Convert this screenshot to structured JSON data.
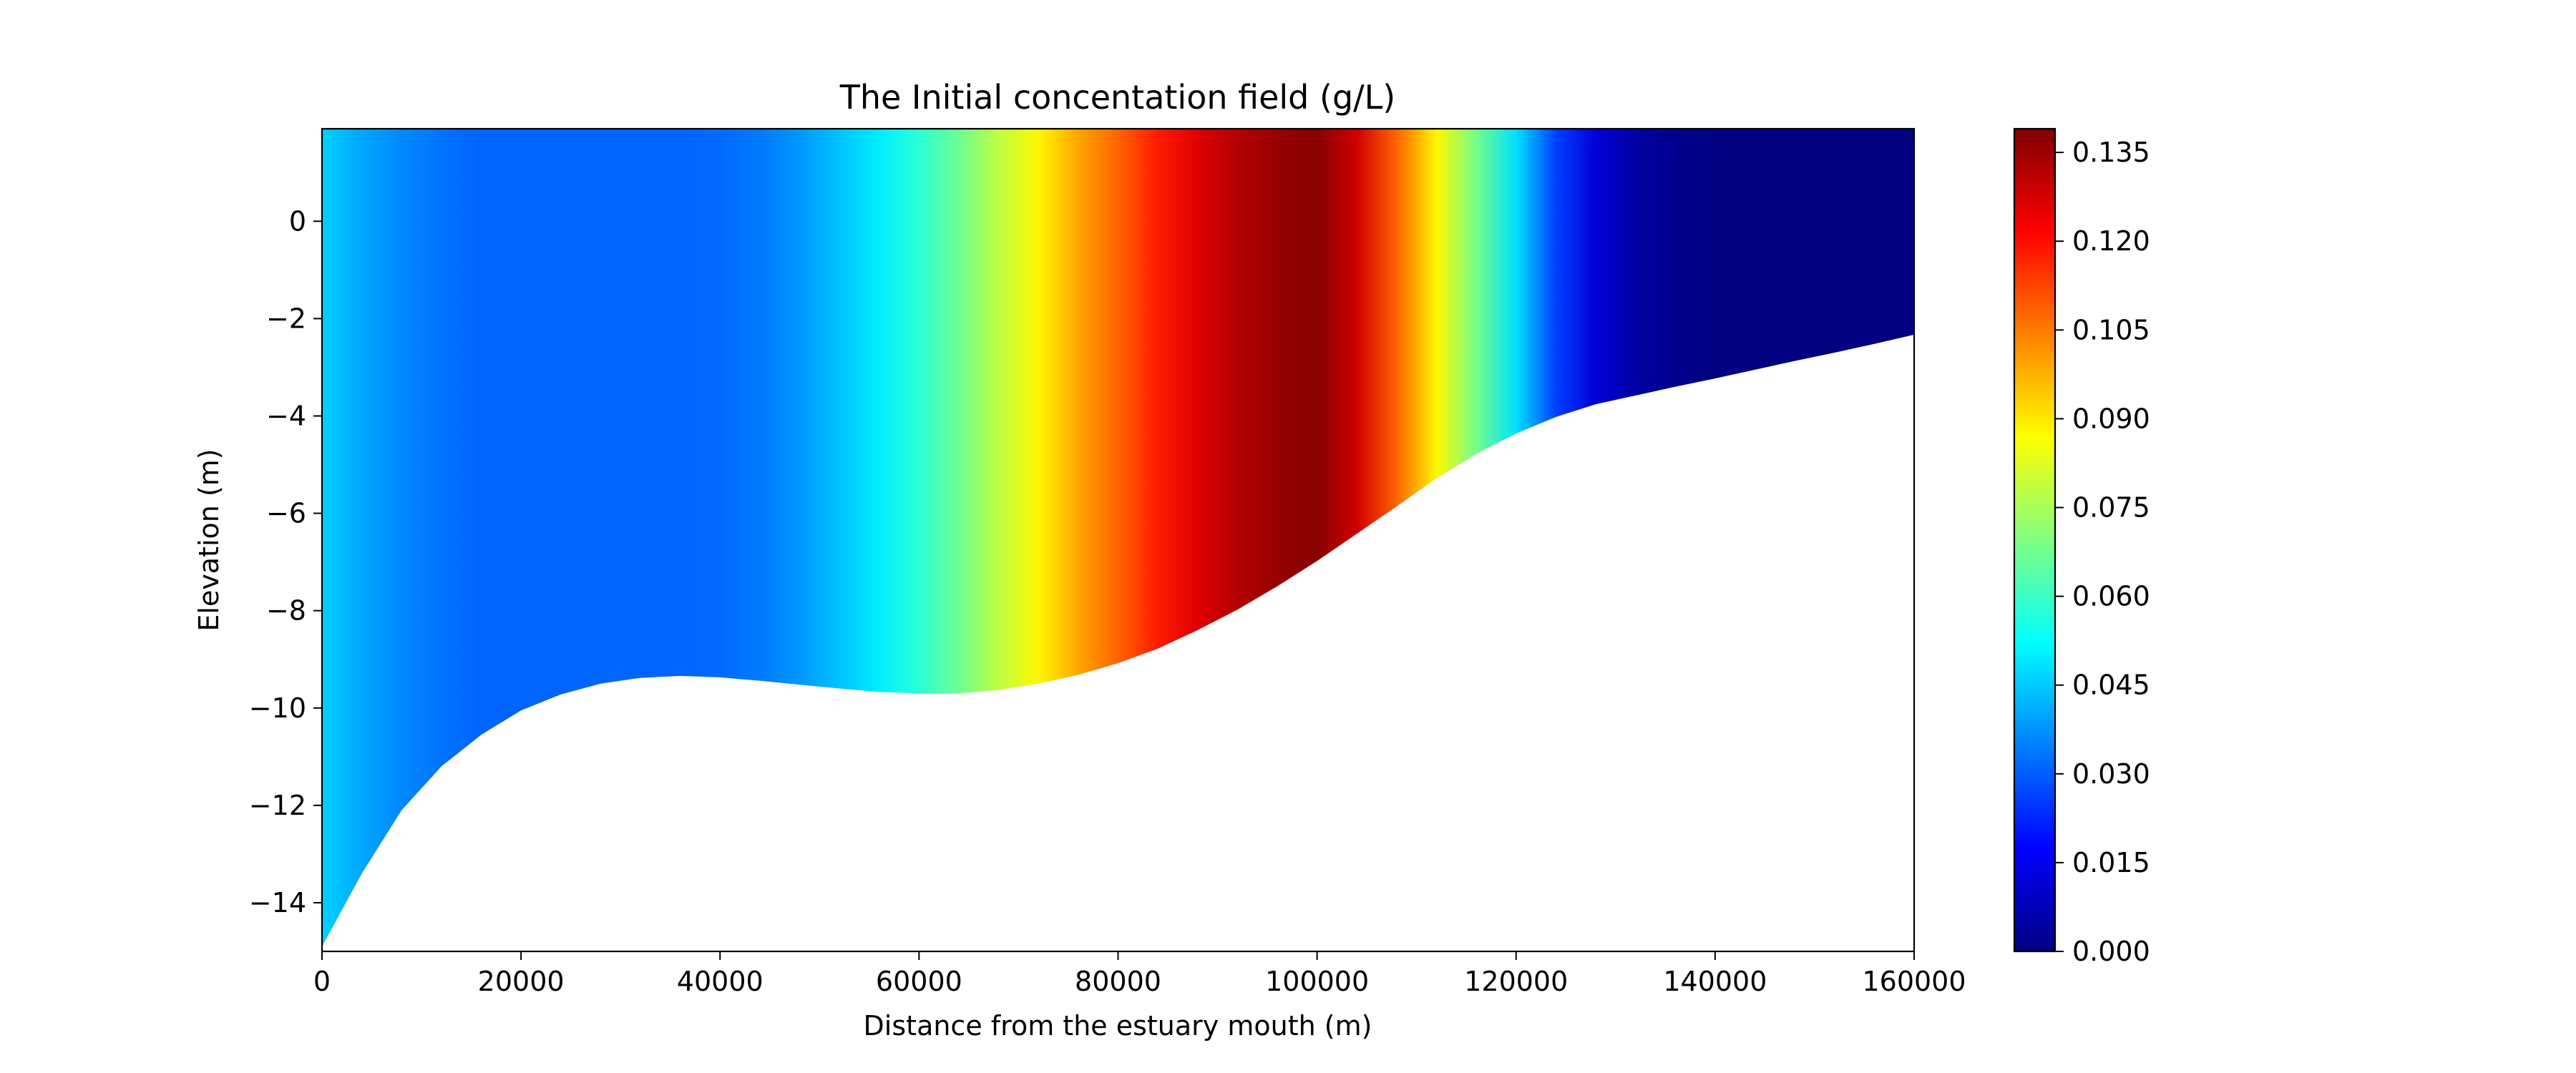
{
  "chart_data": {
    "type": "heatmap",
    "title": "The Initial concentation field (g/L)",
    "xlabel": "Distance from the estuary mouth (m)",
    "ylabel": "Elevation (m)",
    "xlim": [
      0,
      160000
    ],
    "ylim": [
      -15,
      1.9
    ],
    "xticks": [
      0,
      20000,
      40000,
      60000,
      80000,
      100000,
      120000,
      140000,
      160000
    ],
    "yticks": [
      0,
      -2,
      -4,
      -6,
      -8,
      -10,
      -12,
      -14
    ],
    "ytick_labels": [
      "0",
      "−2",
      "−4",
      "−6",
      "−8",
      "−10",
      "−12",
      "−14"
    ],
    "surface_elevation": 1.9,
    "colormap": "jet",
    "grid": false,
    "colorbar": {
      "min": 0.0,
      "max": 0.139,
      "ticks": [
        0.0,
        0.015,
        0.03,
        0.045,
        0.06,
        0.075,
        0.09,
        0.105,
        0.12,
        0.135
      ],
      "tick_labels": [
        "0.000",
        "0.015",
        "0.030",
        "0.045",
        "0.060",
        "0.075",
        "0.090",
        "0.105",
        "0.120",
        "0.135"
      ]
    },
    "bed_profile": {
      "x": [
        0,
        4000,
        8000,
        12000,
        16000,
        20000,
        24000,
        28000,
        32000,
        36000,
        40000,
        44000,
        48000,
        52000,
        56000,
        60000,
        64000,
        68000,
        72000,
        76000,
        80000,
        84000,
        88000,
        92000,
        96000,
        100000,
        104000,
        108000,
        112000,
        116000,
        120000,
        124000,
        128000,
        132000,
        136000,
        140000,
        144000,
        148000,
        152000,
        156000,
        160000
      ],
      "elevation": [
        -14.9,
        -13.4,
        -12.1,
        -11.2,
        -10.55,
        -10.05,
        -9.72,
        -9.5,
        -9.38,
        -9.34,
        -9.37,
        -9.44,
        -9.52,
        -9.6,
        -9.67,
        -9.7,
        -9.7,
        -9.63,
        -9.5,
        -9.32,
        -9.08,
        -8.78,
        -8.4,
        -7.98,
        -7.5,
        -6.98,
        -6.42,
        -5.86,
        -5.28,
        -4.78,
        -4.36,
        -4.02,
        -3.76,
        -3.58,
        -3.4,
        -3.23,
        -3.05,
        -2.87,
        -2.7,
        -2.52,
        -2.33
      ]
    },
    "concentration_profile": {
      "x": [
        0,
        4000,
        8000,
        12000,
        16000,
        20000,
        24000,
        28000,
        32000,
        36000,
        40000,
        44000,
        48000,
        52000,
        56000,
        60000,
        64000,
        68000,
        72000,
        76000,
        80000,
        84000,
        88000,
        92000,
        96000,
        100000,
        104000,
        108000,
        112000,
        116000,
        120000,
        124000,
        128000,
        132000,
        136000,
        140000,
        144000,
        148000,
        152000,
        156000,
        160000
      ],
      "values": [
        0.046,
        0.04,
        0.036,
        0.033,
        0.031,
        0.031,
        0.031,
        0.031,
        0.031,
        0.031,
        0.032,
        0.034,
        0.038,
        0.044,
        0.05,
        0.058,
        0.067,
        0.078,
        0.088,
        0.099,
        0.108,
        0.118,
        0.126,
        0.132,
        0.136,
        0.138,
        0.128,
        0.108,
        0.088,
        0.068,
        0.048,
        0.026,
        0.012,
        0.005,
        0.002,
        0.0,
        0.0,
        0.0,
        0.0,
        0.0,
        0.0
      ]
    }
  }
}
